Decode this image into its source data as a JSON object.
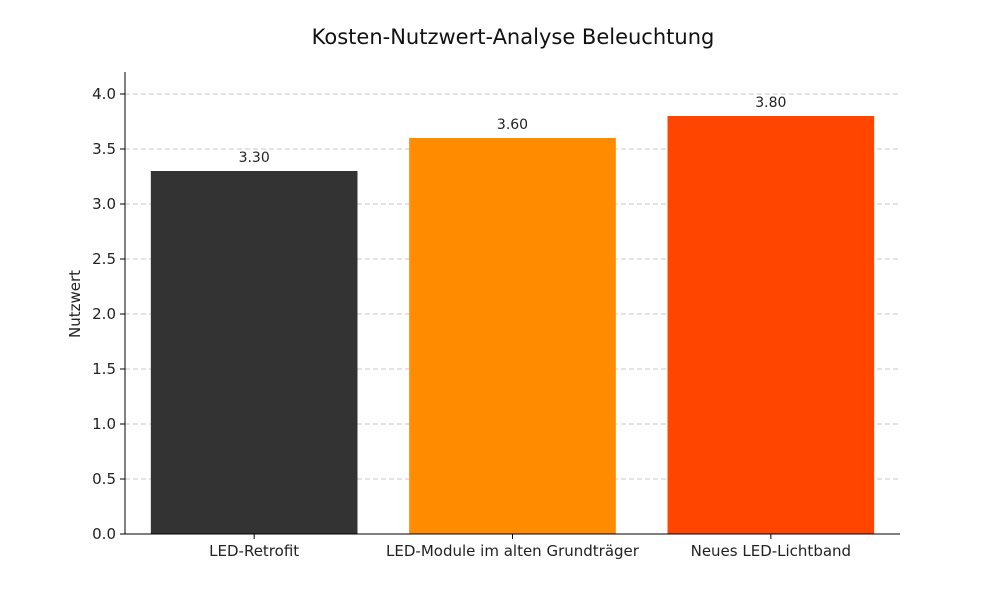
{
  "chart_data": {
    "type": "bar",
    "title": "Kosten-Nutzwert-Analyse Beleuchtung",
    "xlabel": "",
    "ylabel": "Nutzwert",
    "categories": [
      "LED-Retrofit",
      "LED-Module im alten Grundträger",
      "Neues LED-Lichtband"
    ],
    "values": [
      3.3,
      3.6,
      3.8
    ],
    "value_labels": [
      "3.30",
      "3.60",
      "3.80"
    ],
    "colors": [
      "#333333",
      "#ff8c00",
      "#ff4500"
    ],
    "ylim": [
      0,
      4.2
    ],
    "yticks": [
      0.0,
      0.5,
      1.0,
      1.5,
      2.0,
      2.5,
      3.0,
      3.5,
      4.0
    ],
    "ytick_labels": [
      "0.0",
      "0.5",
      "1.0",
      "1.5",
      "2.0",
      "2.5",
      "3.0",
      "3.5",
      "4.0"
    ],
    "grid": true,
    "grid_axis": "y"
  }
}
